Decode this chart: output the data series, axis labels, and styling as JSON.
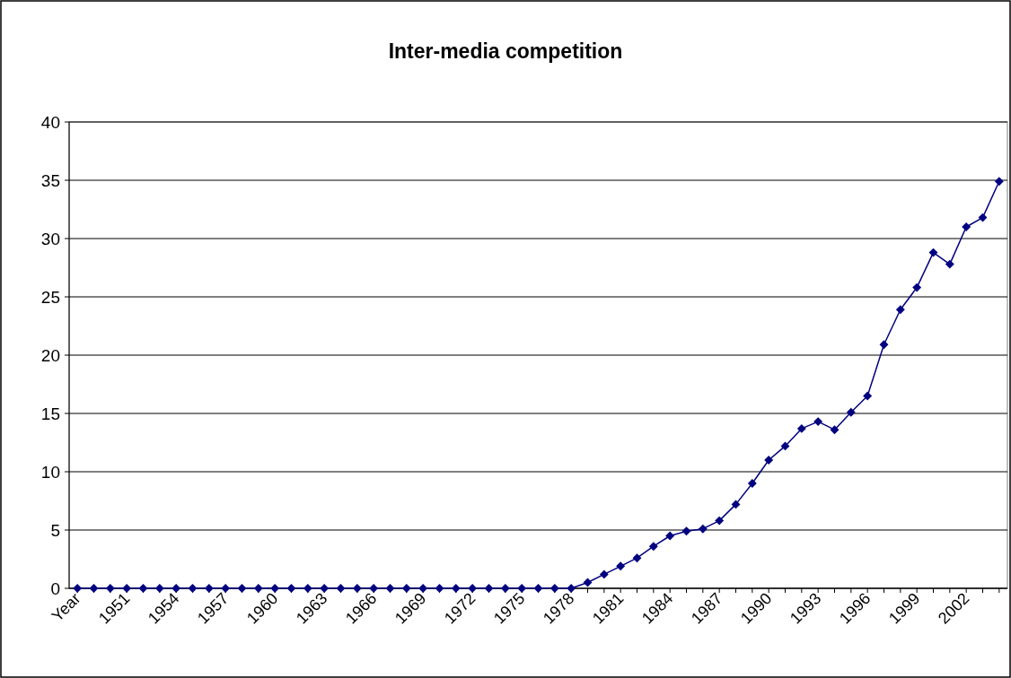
{
  "chart_data": {
    "type": "line",
    "title": "Inter-media competition",
    "categories": [
      "Year",
      null,
      null,
      "1951",
      null,
      null,
      "1954",
      null,
      null,
      "1957",
      null,
      null,
      "1960",
      null,
      null,
      "1963",
      null,
      null,
      "1966",
      null,
      null,
      "1969",
      null,
      null,
      "1972",
      null,
      null,
      "1975",
      null,
      null,
      "1978",
      null,
      null,
      "1981",
      null,
      null,
      "1984",
      null,
      null,
      "1987",
      null,
      null,
      "1990",
      null,
      null,
      "1993",
      null,
      null,
      "1996",
      null,
      null,
      "1999",
      null,
      null,
      "2002",
      null,
      null
    ],
    "series": [
      {
        "color": "#000080",
        "values": [
          0,
          0,
          0,
          0,
          0,
          0,
          0,
          0,
          0,
          0,
          0,
          0,
          0,
          0,
          0,
          0,
          0,
          0,
          0,
          0,
          0,
          0,
          0,
          0,
          0,
          0,
          0,
          0,
          0,
          0,
          0,
          0.5,
          1.2,
          1.9,
          2.6,
          3.6,
          4.5,
          4.9,
          5.1,
          5.8,
          7.2,
          9.0,
          11.0,
          12.2,
          13.7,
          14.3,
          13.6,
          15.1,
          16.5,
          20.9,
          23.9,
          25.8,
          28.8,
          27.8,
          31.0,
          31.8,
          34.9
        ]
      }
    ],
    "ylim": [
      0,
      40
    ],
    "yticks": [
      0,
      5,
      10,
      15,
      20,
      25,
      30,
      35,
      40
    ],
    "grid": "y",
    "marker": "diamond",
    "line_style": "solid"
  }
}
